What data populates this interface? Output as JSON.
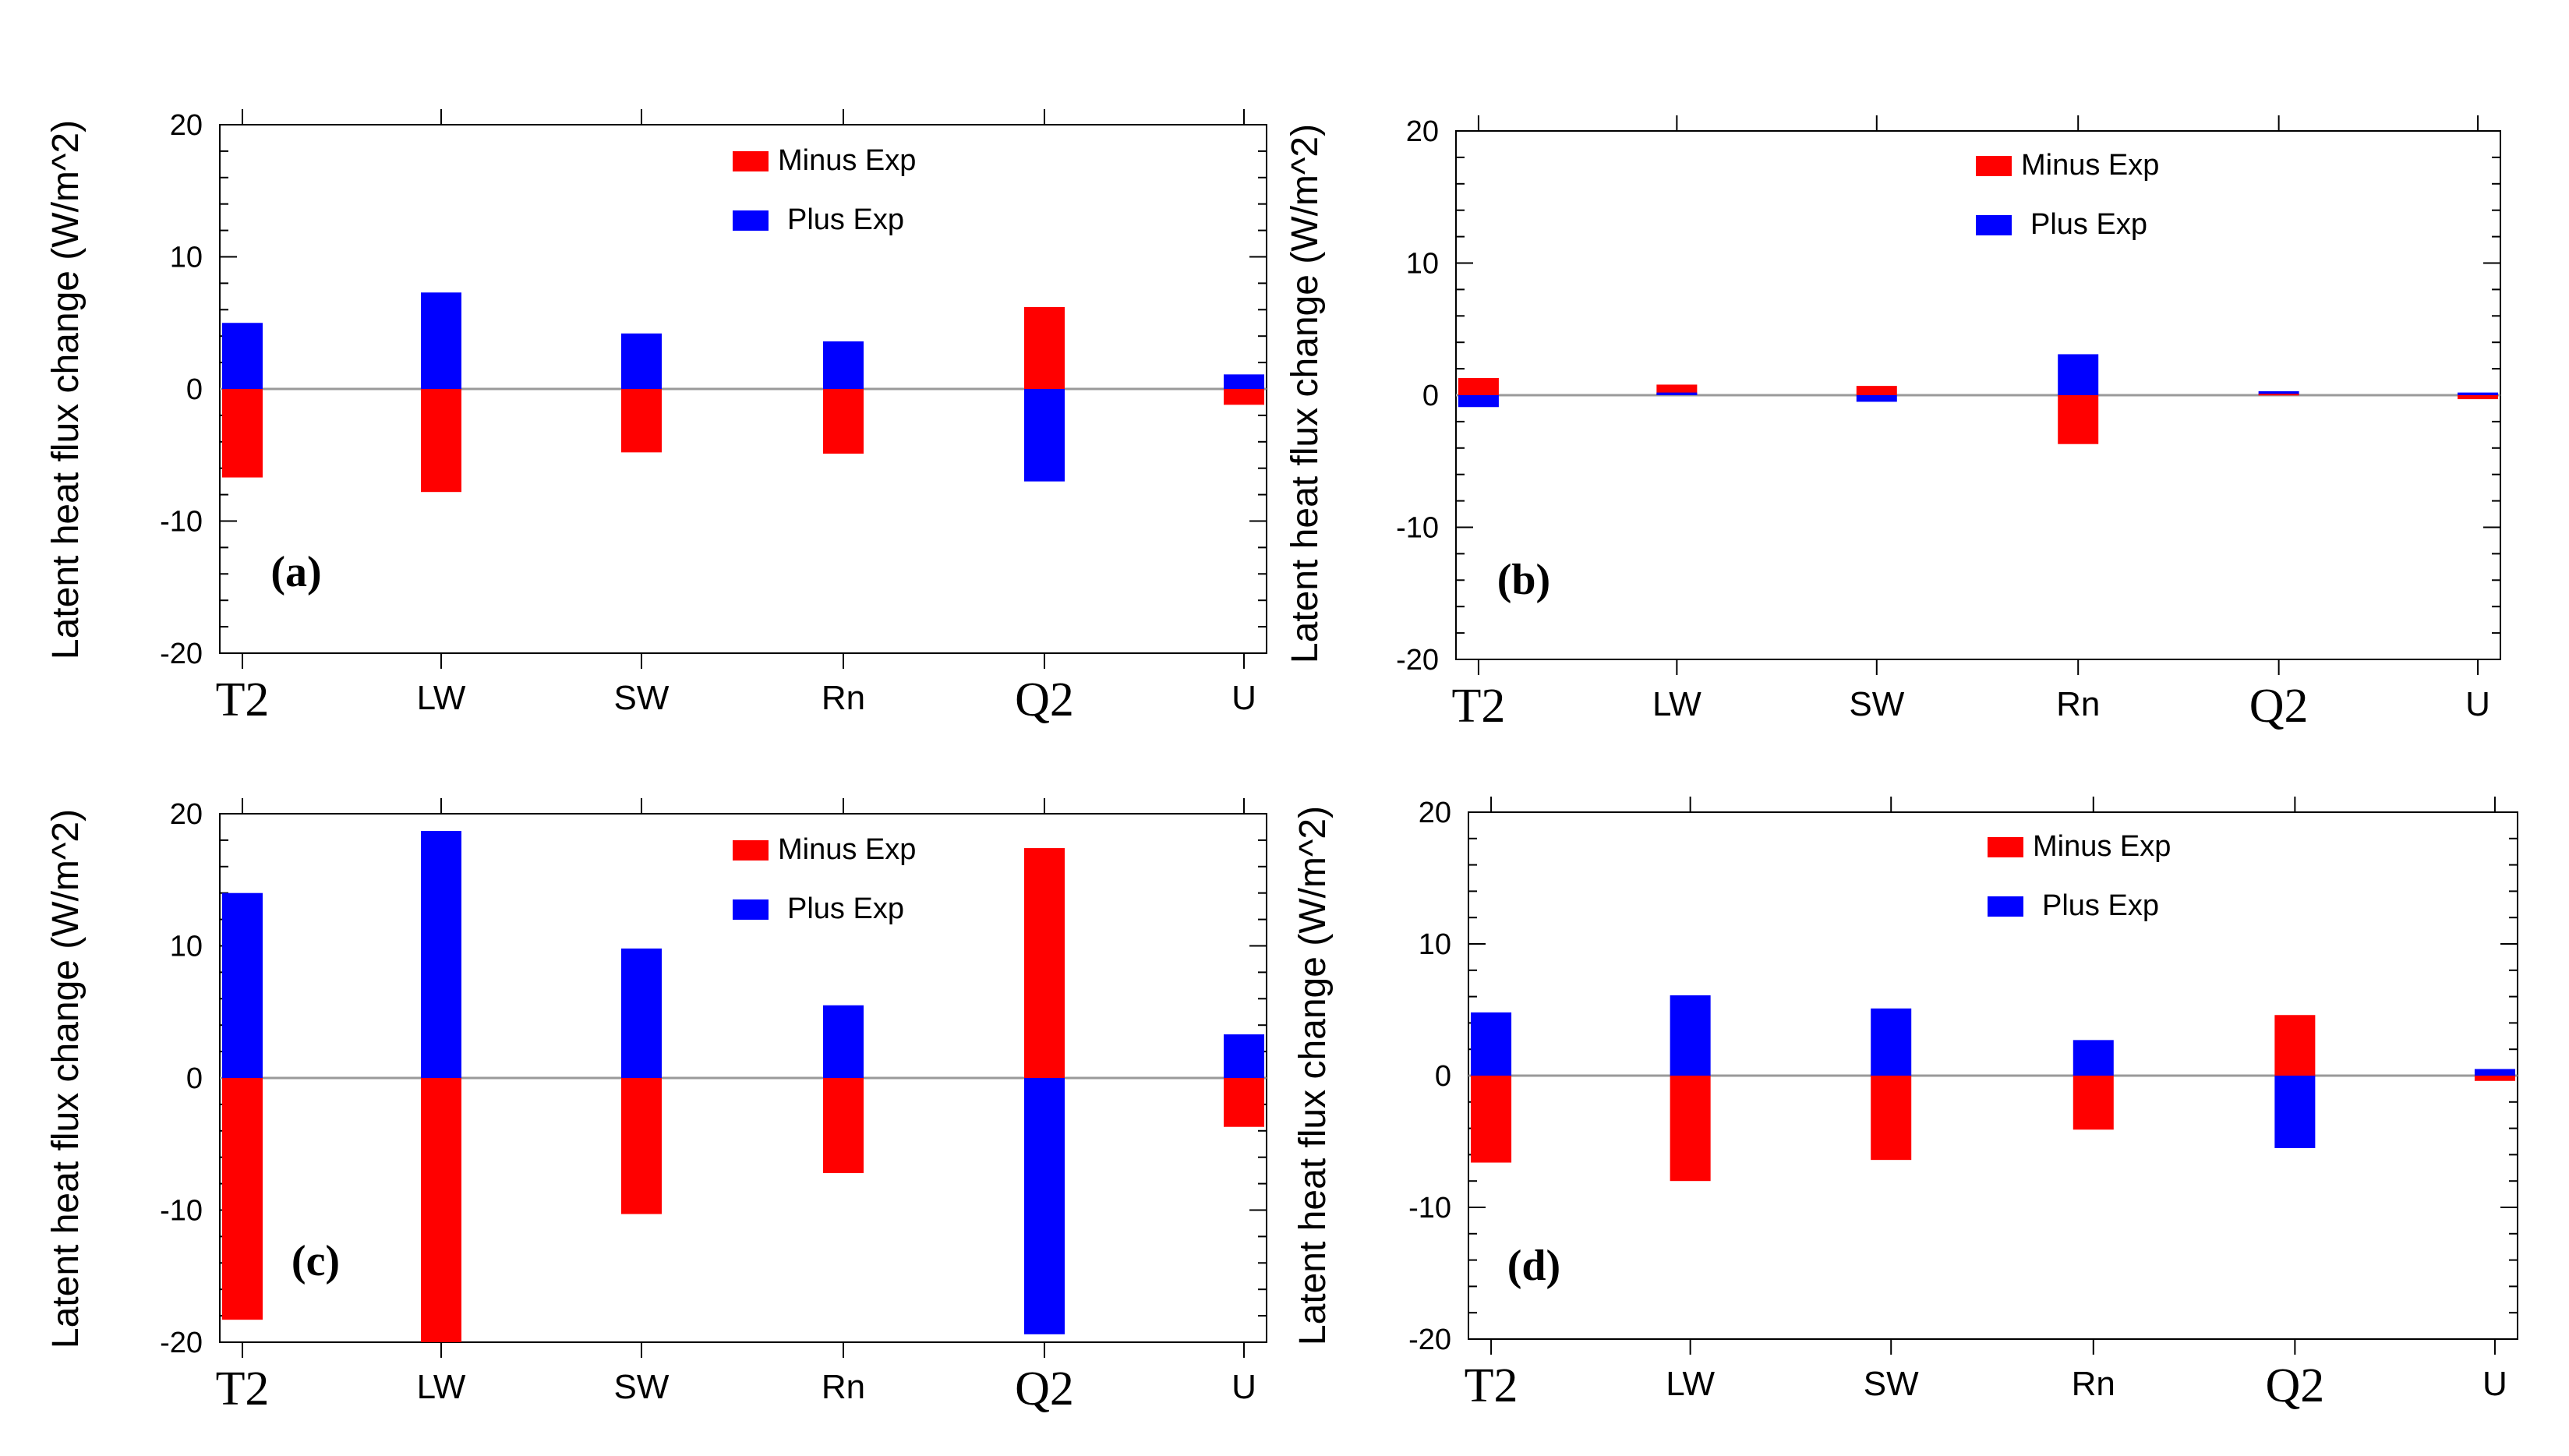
{
  "colors": {
    "minus": "#ff0000",
    "plus": "#0000ff",
    "zero_line": "#9a9a9a"
  },
  "chart_data": [
    {
      "type": "bar",
      "panel_label": "(a)",
      "categories": [
        "T2",
        "LW",
        "SW",
        "Rn",
        "Q2",
        "U"
      ],
      "ylabel": "Latent heat flux change (W/m^2)",
      "ylim": [
        -20,
        20
      ],
      "yticks": [
        -20,
        -10,
        0,
        10,
        20
      ],
      "legend_position": "top-center",
      "series": [
        {
          "name": "Minus Exp",
          "values": [
            -6.7,
            -7.8,
            -4.8,
            -4.9,
            6.2,
            -1.2
          ]
        },
        {
          "name": "Plus Exp",
          "values": [
            5.0,
            7.3,
            4.2,
            3.6,
            -7.0,
            1.1
          ]
        }
      ]
    },
    {
      "type": "bar",
      "panel_label": "(b)",
      "categories": [
        "T2",
        "LW",
        "SW",
        "Rn",
        "Q2",
        "U"
      ],
      "ylabel": "Latent heat flux change (W/m^2)",
      "ylim": [
        -20,
        20
      ],
      "yticks": [
        -20,
        -10,
        0,
        10,
        20
      ],
      "legend_position": "top-center",
      "series": [
        {
          "name": "Minus Exp",
          "values": [
            1.3,
            0.8,
            0.7,
            -3.7,
            0.1,
            -0.3
          ]
        },
        {
          "name": "Plus Exp",
          "values": [
            -0.9,
            0.2,
            -0.5,
            3.1,
            0.3,
            0.2
          ]
        }
      ]
    },
    {
      "type": "bar",
      "panel_label": "(c)",
      "categories": [
        "T2",
        "LW",
        "SW",
        "Rn",
        "Q2",
        "U"
      ],
      "ylabel": "Latent heat flux change (W/m^2)",
      "ylim": [
        -20,
        20
      ],
      "yticks": [
        -20,
        -10,
        0,
        10,
        20
      ],
      "legend_position": "top-center",
      "series": [
        {
          "name": "Minus Exp",
          "values": [
            -18.3,
            -20,
            -10.3,
            -7.2,
            17.4,
            -3.7
          ]
        },
        {
          "name": "Plus Exp",
          "values": [
            14.0,
            18.7,
            9.8,
            5.5,
            -19.4,
            3.3
          ]
        }
      ]
    },
    {
      "type": "bar",
      "panel_label": "(d)",
      "categories": [
        "T2",
        "LW",
        "SW",
        "Rn",
        "Q2",
        "U"
      ],
      "ylabel": "Latent heat flux change (W/m^2)",
      "ylim": [
        -20,
        20
      ],
      "yticks": [
        -20,
        -10,
        0,
        10,
        20
      ],
      "legend_position": "top-center",
      "series": [
        {
          "name": "Minus Exp",
          "values": [
            -6.6,
            -8.0,
            -6.4,
            -4.1,
            4.6,
            -0.4
          ]
        },
        {
          "name": "Plus Exp",
          "values": [
            4.8,
            6.1,
            5.1,
            2.7,
            -5.5,
            0.5
          ]
        }
      ]
    }
  ]
}
